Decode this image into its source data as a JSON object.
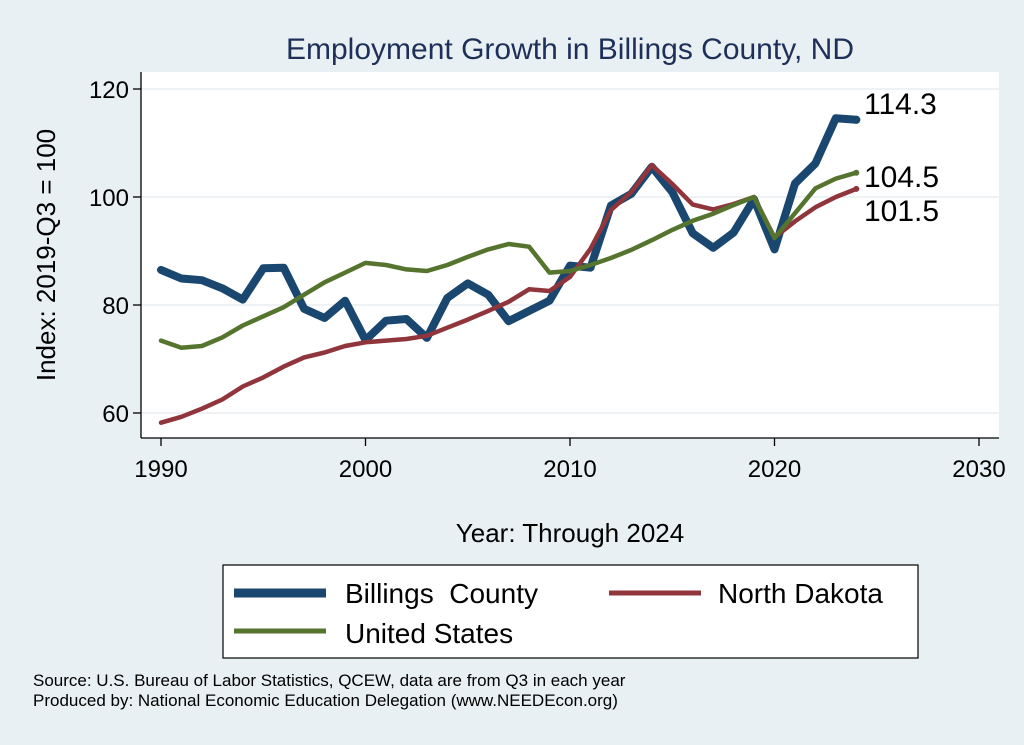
{
  "chart_data": {
    "type": "line",
    "title": "Employment Growth in Billings County, ND",
    "xlabel": "Year: Through 2024",
    "ylabel": "Index: 2019-Q3 = 100",
    "xlim": [
      1990,
      2030
    ],
    "ylim": [
      57,
      122
    ],
    "xticks": [
      "1990",
      "2000",
      "2010",
      "2020",
      "2030"
    ],
    "yticks": [
      "60",
      "80",
      "100",
      "120"
    ],
    "grid": true,
    "legend_position": "bottom",
    "x": [
      1990,
      1991,
      1992,
      1993,
      1994,
      1995,
      1996,
      1997,
      1998,
      1999,
      2000,
      2001,
      2002,
      2003,
      2004,
      2005,
      2006,
      2007,
      2008,
      2009,
      2010,
      2011,
      2012,
      2013,
      2014,
      2015,
      2016,
      2017,
      2018,
      2019,
      2020,
      2021,
      2022,
      2023,
      2024
    ],
    "series": [
      {
        "name": "Billings  County",
        "color": "#1a476f",
        "values": [
          86.5,
          84.9,
          84.6,
          83.1,
          81.0,
          86.8,
          86.9,
          79.3,
          77.6,
          80.8,
          73.5,
          77.1,
          77.4,
          73.9,
          81.3,
          84.0,
          81.9,
          77.0,
          78.9,
          80.8,
          87.3,
          86.9,
          98.4,
          100.6,
          105.6,
          100.9,
          93.3,
          90.6,
          93.4,
          99.6,
          90.3,
          102.5,
          106.2,
          114.6,
          114.3
        ],
        "end_label": "114.3"
      },
      {
        "name": "North Dakota",
        "color": "#90353b",
        "values": [
          58.2,
          59.3,
          60.8,
          62.5,
          64.9,
          66.6,
          68.6,
          70.3,
          71.2,
          72.4,
          73.1,
          73.4,
          73.7,
          74.3,
          75.8,
          77.3,
          78.9,
          80.6,
          82.9,
          82.6,
          85.2,
          90.4,
          97.6,
          100.9,
          105.9,
          102.4,
          98.6,
          97.7,
          98.7,
          100.0,
          92.5,
          95.5,
          98.1,
          100.0,
          101.5
        ],
        "end_label": "101.5"
      },
      {
        "name": "United States",
        "color": "#55752f",
        "values": [
          73.4,
          72.1,
          72.4,
          74.0,
          76.2,
          77.9,
          79.6,
          81.9,
          84.2,
          86.0,
          87.8,
          87.4,
          86.6,
          86.3,
          87.4,
          88.9,
          90.3,
          91.3,
          90.8,
          86.0,
          86.3,
          87.4,
          88.7,
          90.2,
          92.0,
          93.9,
          95.6,
          96.9,
          98.5,
          100.0,
          92.4,
          97.0,
          101.6,
          103.4,
          104.5
        ],
        "end_label": "104.5"
      }
    ]
  },
  "footnotes": [
    "Source: U.S. Bureau of Labor Statistics, QCEW, data are from Q3 in each year",
    "Produced by: National Economic Education Delegation (www.NEEDEcon.org)"
  ]
}
